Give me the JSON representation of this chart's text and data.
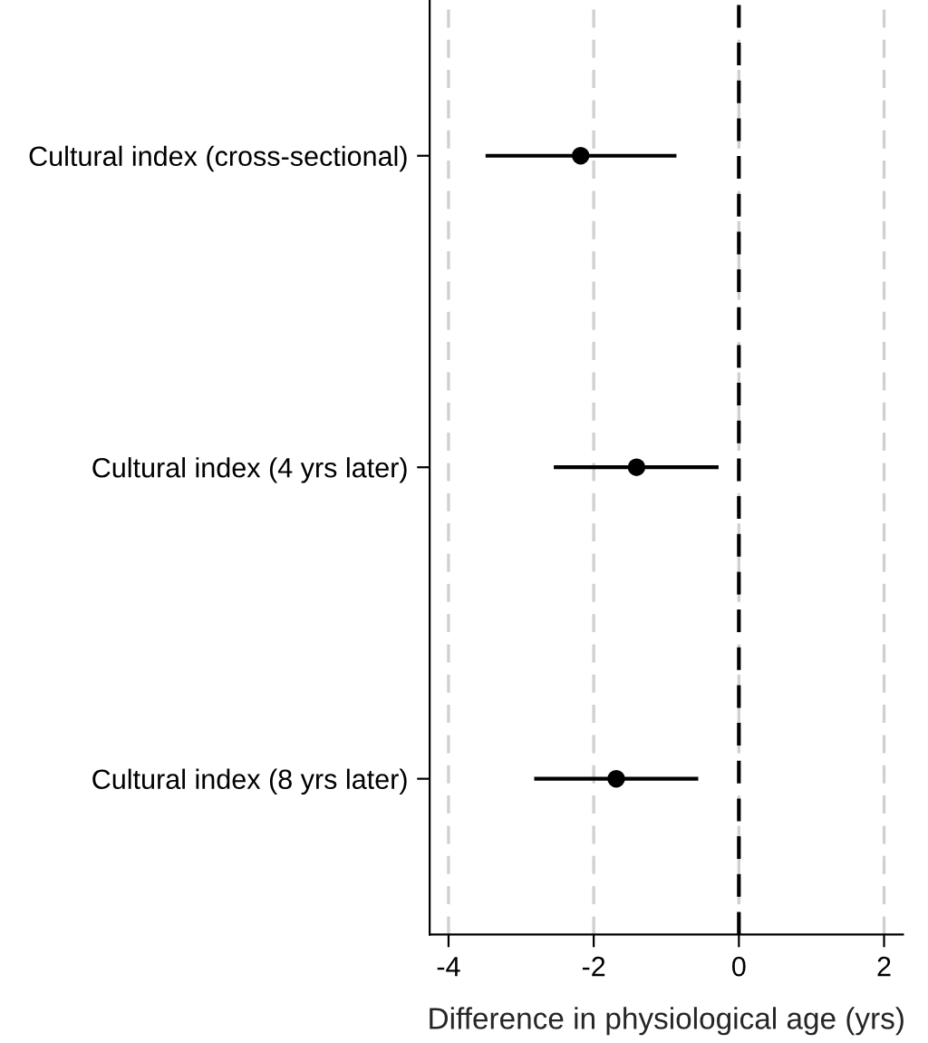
{
  "chart_data": {
    "type": "scatter",
    "orientation": "horizontal",
    "xlabel": "Difference in physiological age (yrs)",
    "categories": [
      "Cultural index (cross-sectional)",
      "Cultural index (4 yrs later)",
      "Cultural index (8 yrs later)"
    ],
    "values": [
      -2.18,
      -1.41,
      -1.69
    ],
    "errors": [
      [
        -3.49,
        -0.86
      ],
      [
        -2.55,
        -0.28
      ],
      [
        -2.82,
        -0.56
      ]
    ],
    "color": "#000000",
    "marker": "circle",
    "xlim": [
      -4.26,
      2.26
    ],
    "xticks": [
      -4,
      -2,
      0,
      2
    ],
    "grid": "x",
    "ref_lines": [
      {
        "axis": "x",
        "value": 0,
        "color": "#000000",
        "line_style": "dashed"
      }
    ]
  }
}
